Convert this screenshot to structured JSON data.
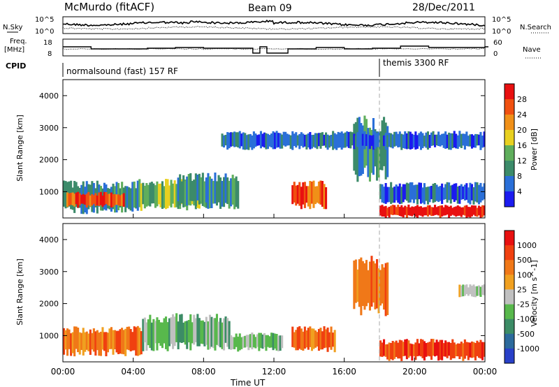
{
  "header": {
    "title": "McMurdo (fitACF)",
    "beam": "Beam 09",
    "date": "28/Dec/2011"
  },
  "noise_panel": {
    "left_label": "N.Sky",
    "right_label": "N.Search",
    "left_ticks": [
      "10^5",
      "10^0"
    ],
    "right_ticks": [
      "10^5",
      "10^0"
    ]
  },
  "freq_panel": {
    "left_label_1": "Freq.",
    "left_label_2": "[MHz]",
    "right_label": "Nave",
    "left_ticks": [
      "18",
      "8"
    ],
    "right_ticks": [
      "60",
      "0"
    ]
  },
  "cpid_panel": {
    "label": "CPID",
    "mode_1": "normalsound (fast) 157 RF",
    "mode_2": "themis 3300 RF"
  },
  "chart_data": [
    {
      "type": "heatmap",
      "name": "power",
      "ylabel": "Slant Range [km]",
      "yticks": [
        1000,
        2000,
        3000,
        4000
      ],
      "ylim": [
        180,
        4500
      ],
      "colorbar_label": "Power [dB]",
      "colorbar_ticks": [
        "4",
        "8",
        "12",
        "16",
        "20",
        "24",
        "28"
      ],
      "colorbar_colors": [
        "#1b1bf0",
        "#2a6fd8",
        "#3c8b6a",
        "#5fae5c",
        "#e8d020",
        "#f09018",
        "#f05010",
        "#e81010"
      ],
      "regions": [
        {
          "t0": 0.0,
          "t1": 4.3,
          "r0": 300,
          "r1": 1350,
          "level": 2
        },
        {
          "t0": 0.2,
          "t1": 3.5,
          "r0": 500,
          "r1": 1000,
          "level": 6
        },
        {
          "t0": 4.3,
          "t1": 8.5,
          "r0": 400,
          "r1": 1400,
          "level": 3
        },
        {
          "t0": 6.5,
          "t1": 10.0,
          "r0": 450,
          "r1": 1600,
          "level": 2
        },
        {
          "t0": 13.0,
          "t1": 15.0,
          "r0": 450,
          "r1": 1350,
          "level": 6
        },
        {
          "t0": 16.5,
          "t1": 18.5,
          "r0": 1300,
          "r1": 3400,
          "level": 2
        },
        {
          "t0": 18.0,
          "t1": 24.0,
          "r0": 180,
          "r1": 600,
          "level": 7
        },
        {
          "t0": 18.0,
          "t1": 24.0,
          "r0": 600,
          "r1": 1300,
          "level": 1
        },
        {
          "t0": 9.0,
          "t1": 24.0,
          "r0": 2300,
          "r1": 2900,
          "level": 1
        }
      ]
    },
    {
      "type": "heatmap",
      "name": "velocity",
      "ylabel": "Slant Range [km]",
      "yticks": [
        1000,
        2000,
        3000,
        4000
      ],
      "ylim": [
        180,
        4500
      ],
      "colorbar_label": "Velocity [m s^-1]",
      "colorbar_ticks": [
        "1000",
        "500",
        "100",
        "25",
        "-25",
        "-100",
        "-500",
        "-1000"
      ],
      "colorbar_colors": [
        "#2840c8",
        "#2c6a9c",
        "#3c8c66",
        "#58b84c",
        "#c0c0c0",
        "#f0a020",
        "#f07818",
        "#f04010",
        "#e81010"
      ],
      "regions": [
        {
          "t0": 0.0,
          "t1": 4.5,
          "r0": 350,
          "r1": 1300,
          "level": 6
        },
        {
          "t0": 4.5,
          "t1": 9.5,
          "r0": 500,
          "r1": 1700,
          "level": 3
        },
        {
          "t0": 9.5,
          "t1": 12.5,
          "r0": 500,
          "r1": 1100,
          "level": 3
        },
        {
          "t0": 13.0,
          "t1": 15.5,
          "r0": 450,
          "r1": 1300,
          "level": 6
        },
        {
          "t0": 16.5,
          "t1": 18.5,
          "r0": 1600,
          "r1": 3500,
          "level": 6
        },
        {
          "t0": 18.0,
          "t1": 24.0,
          "r0": 200,
          "r1": 900,
          "level": 7
        },
        {
          "t0": 22.5,
          "t1": 24.0,
          "r0": 2200,
          "r1": 2600,
          "level": 4
        }
      ]
    }
  ],
  "x_axis": {
    "xlabel": "Time UT",
    "ticks": [
      "00:00",
      "04:00",
      "08:00",
      "12:00",
      "16:00",
      "20:00",
      "00:00"
    ],
    "range_hours": [
      0,
      24
    ]
  },
  "mode_change_hour": 18.0
}
